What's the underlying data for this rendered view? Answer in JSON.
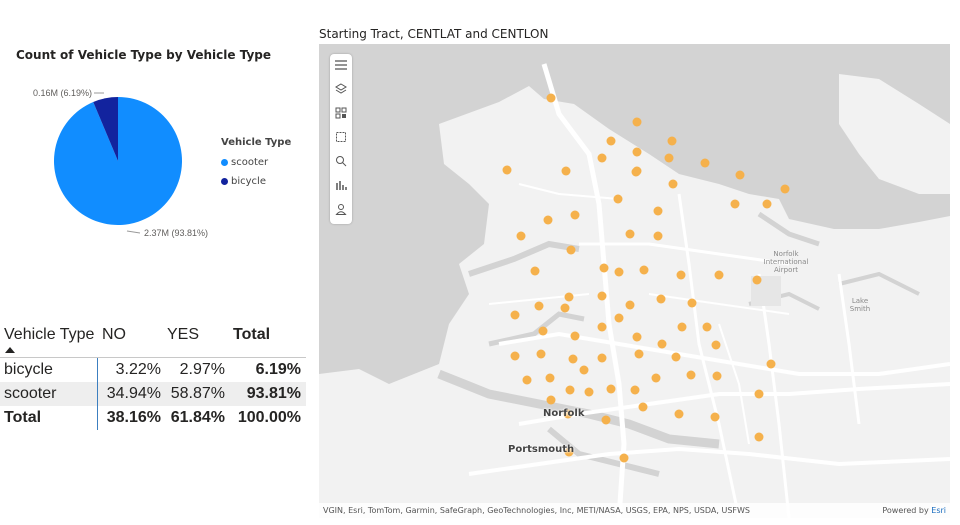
{
  "pie_visual": {
    "title": "Count of Vehicle Type by Vehicle Type",
    "label_bicycle": "0.16M (6.19%)",
    "label_scooter": "2.37M (93.81%)",
    "legend_title": "Vehicle Type",
    "legend": [
      {
        "name": "scooter",
        "color": "#118dff"
      },
      {
        "name": "bicycle",
        "color": "#12239e"
      }
    ]
  },
  "chart_data": {
    "type": "pie",
    "title": "Count of Vehicle Type by Vehicle Type",
    "categories": [
      "scooter",
      "bicycle"
    ],
    "values": [
      2.37,
      0.16
    ],
    "percentages": [
      93.81,
      6.19
    ],
    "unit": "M",
    "colors": [
      "#118dff",
      "#12239e"
    ]
  },
  "matrix": {
    "headers": [
      "Vehicle Type",
      "NO",
      "YES",
      "Total"
    ],
    "rows": [
      {
        "type": "bicycle",
        "no": "3.22%",
        "yes": "2.97%",
        "total": "6.19%"
      },
      {
        "type": "scooter",
        "no": "34.94%",
        "yes": "58.87%",
        "total": "93.81%"
      }
    ],
    "total_row": {
      "type": "Total",
      "no": "38.16%",
      "yes": "61.84%",
      "total": "100.00%"
    }
  },
  "map_visual": {
    "title": "Starting Tract, CENTLAT and CENTLON",
    "labels": {
      "norfolk": "Norfolk",
      "portsmouth": "Portsmouth",
      "airport": "Norfolk\nInternational\nAirport",
      "lake": "Lake\nSmith"
    },
    "attribution": "VGIN, Esri, TomTom, Garmin, SafeGraph, GeoTechnologies, Inc, METI/NASA, USGS, EPA, NPS, USDA, USFWS",
    "powered_by": "Powered by",
    "esri": "Esri",
    "toolbar_icons": [
      "menu-icon",
      "layers-icon",
      "qr-icon",
      "select-rect-icon",
      "search-icon",
      "bar-chart-icon",
      "person-icon"
    ],
    "point_color": "#f5b14c"
  }
}
